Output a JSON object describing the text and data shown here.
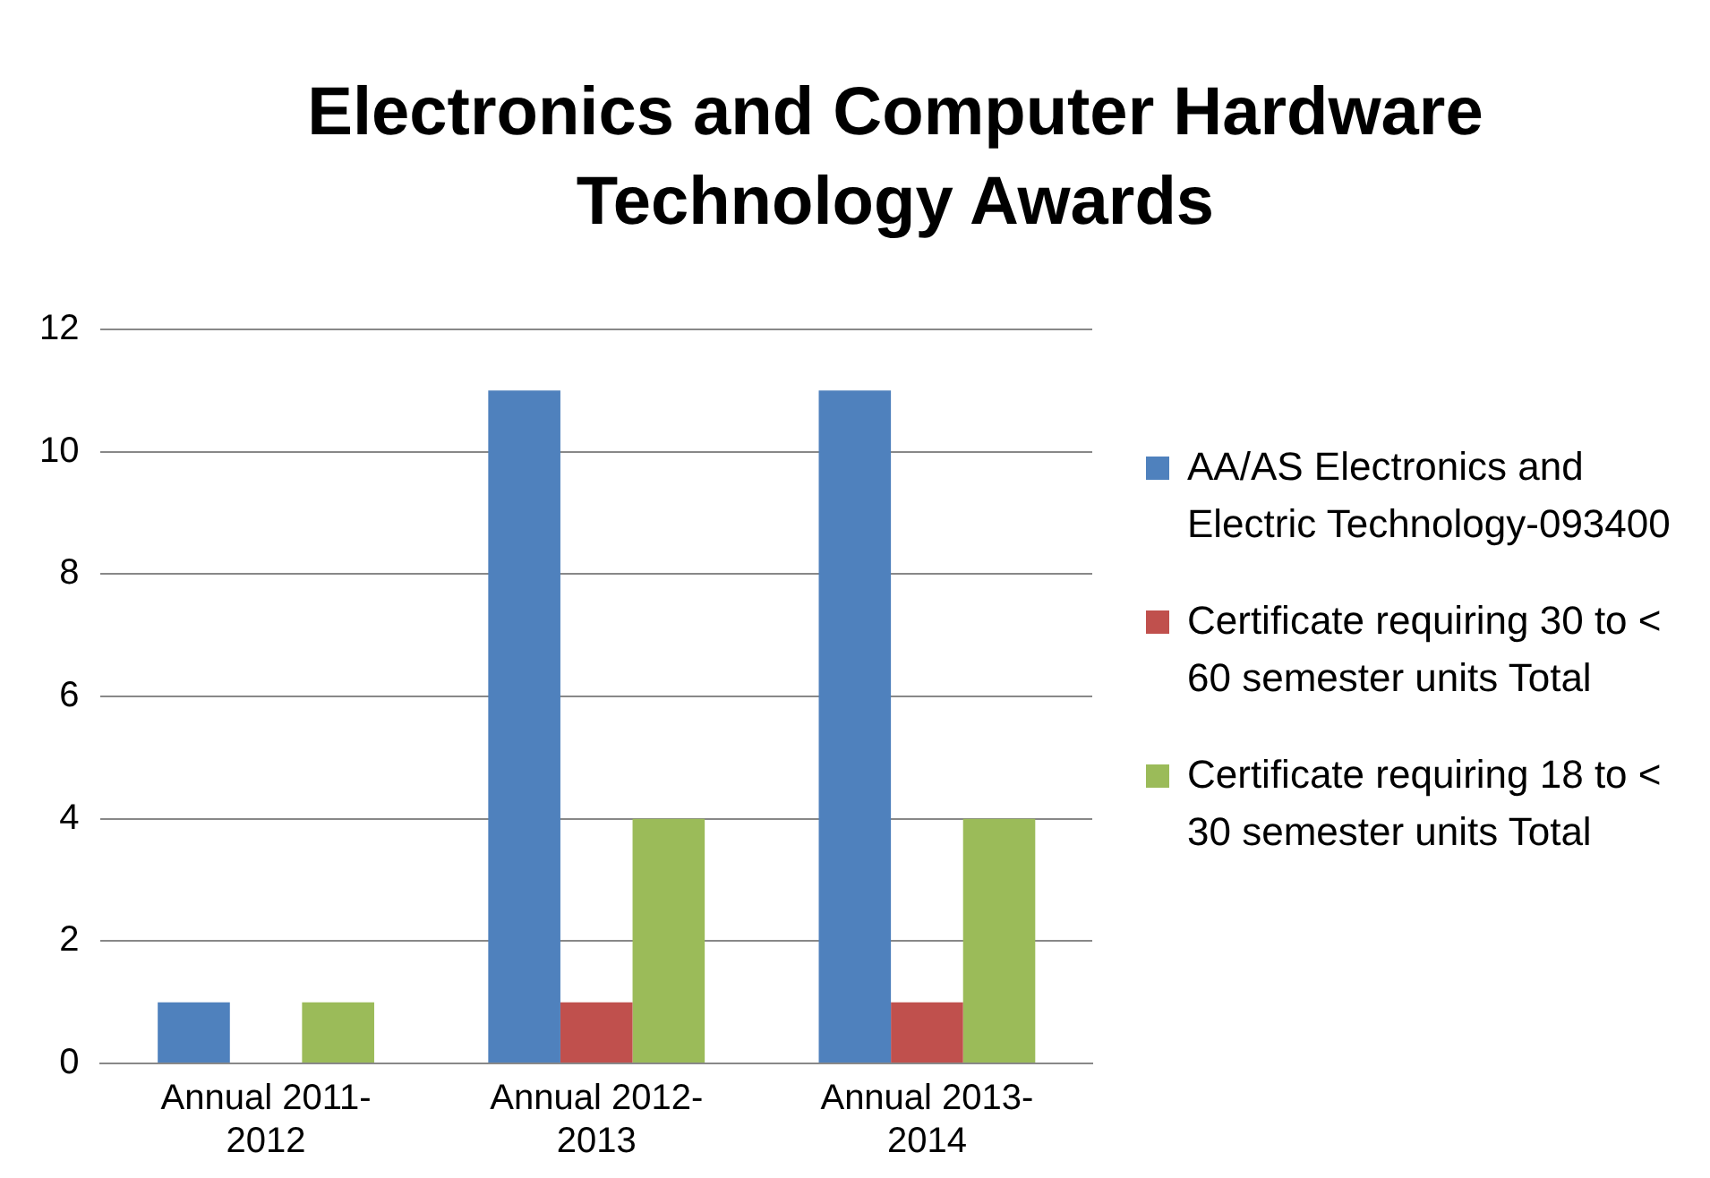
{
  "chart_data": {
    "type": "bar",
    "title": "Electronics and Computer Hardware Technology Awards",
    "categories": [
      "Annual 2011-2012",
      "Annual 2012-2013",
      "Annual 2013-2014"
    ],
    "series": [
      {
        "name": "AA/AS Electronics and Electric Technology-093400",
        "color": "#4f81bd",
        "values": [
          1,
          11,
          11
        ]
      },
      {
        "name": "Certificate requiring 30 to < 60 semester units  Total",
        "color": "#c0504d",
        "values": [
          0,
          1,
          1
        ]
      },
      {
        "name": "Certificate requiring 18 to < 30 semester units Total",
        "color": "#9bbb59",
        "values": [
          1,
          4,
          4
        ]
      }
    ],
    "ylim": [
      0,
      12
    ],
    "yticks": [
      0,
      2,
      4,
      6,
      8,
      10,
      12
    ],
    "grid": "y",
    "legend": "right"
  }
}
